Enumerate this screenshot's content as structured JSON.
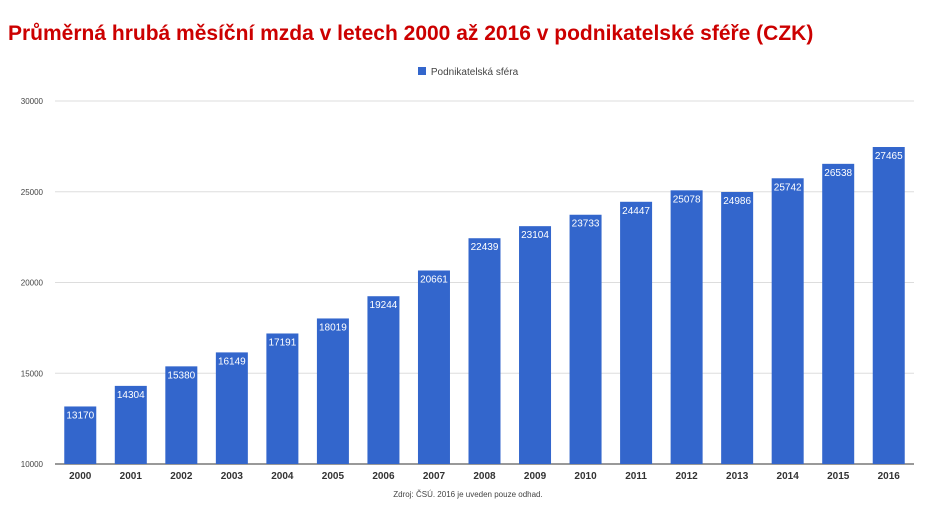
{
  "chart_data": {
    "type": "bar",
    "title": "Průměrná hrubá měsíční mzda v letech 2000 až 2016 v podnikatelské sféře (CZK)",
    "categories": [
      "2000",
      "2001",
      "2002",
      "2003",
      "2004",
      "2005",
      "2006",
      "2007",
      "2008",
      "2009",
      "2010",
      "2011",
      "2012",
      "2013",
      "2014",
      "2015",
      "2016"
    ],
    "series": [
      {
        "name": "Podnikatelská sféra",
        "color": "#3366cc",
        "values": [
          13170,
          14304,
          15380,
          16149,
          17191,
          18019,
          19244,
          20661,
          22439,
          23104,
          23733,
          24447,
          25078,
          24986,
          25742,
          26538,
          27465
        ]
      }
    ],
    "ylim": [
      10000,
      30000
    ],
    "yticks": [
      10000,
      15000,
      20000,
      25000,
      30000
    ],
    "grid": true,
    "legend_position": "top",
    "xlabel": "",
    "ylabel": "",
    "source_note": "Zdroj: ČSÚ. 2016 je uveden pouze odhad."
  }
}
